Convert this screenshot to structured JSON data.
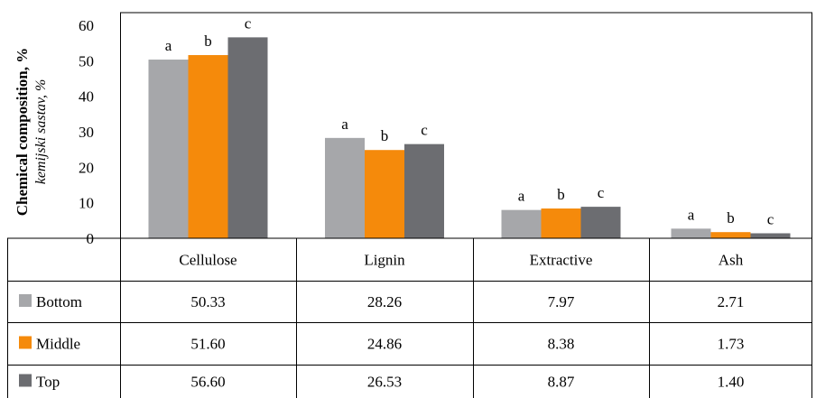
{
  "chart_data": {
    "type": "bar",
    "ylabel": "Chemical composition, %",
    "ylabel_secondary": "kemijski sastav, %",
    "ylim": [
      0,
      60
    ],
    "yticks": [
      0,
      10,
      20,
      30,
      40,
      50,
      60
    ],
    "grid": false,
    "categories": [
      "Cellulose",
      "Lignin",
      "Extractive",
      "Ash"
    ],
    "series": [
      {
        "name": "Bottom",
        "color": "#a6a7aa",
        "values": [
          50.33,
          28.26,
          7.97,
          2.71
        ],
        "value_labels": [
          "50.33",
          "28.26",
          "7.97",
          "2.71"
        ]
      },
      {
        "name": "Middle",
        "color": "#f58a0b",
        "values": [
          51.6,
          24.86,
          8.38,
          1.73
        ],
        "value_labels": [
          "51.60",
          "24.86",
          "8.38",
          "1.73"
        ]
      },
      {
        "name": "Top",
        "color": "#6c6d71",
        "values": [
          56.6,
          26.53,
          8.87,
          1.4
        ],
        "value_labels": [
          "56.60",
          "26.53",
          "8.87",
          "1.40"
        ]
      }
    ],
    "significance_letters": [
      [
        "a",
        "a",
        "a",
        "a"
      ],
      [
        "b",
        "b",
        "b",
        "b"
      ],
      [
        "c",
        "c",
        "c",
        "c"
      ]
    ],
    "legend": "data-table"
  }
}
